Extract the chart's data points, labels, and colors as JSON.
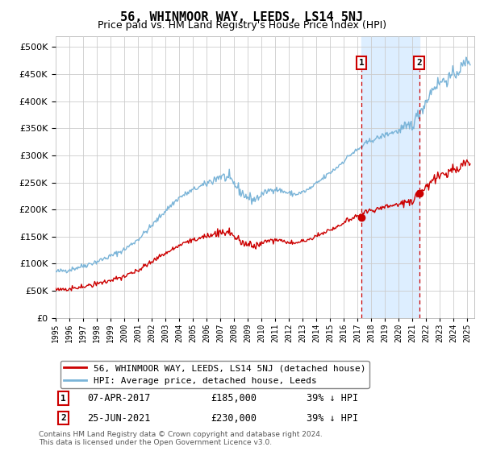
{
  "title": "56, WHINMOOR WAY, LEEDS, LS14 5NJ",
  "subtitle": "Price paid vs. HM Land Registry's House Price Index (HPI)",
  "hpi_label": "HPI: Average price, detached house, Leeds",
  "property_label": "56, WHINMOOR WAY, LEEDS, LS14 5NJ (detached house)",
  "footer": "Contains HM Land Registry data © Crown copyright and database right 2024.\nThis data is licensed under the Open Government Licence v3.0.",
  "annotation1": {
    "label": "1",
    "date": "07-APR-2017",
    "price": "£185,000",
    "hpi": "39% ↓ HPI",
    "x_year": 2017.27
  },
  "annotation2": {
    "label": "2",
    "date": "25-JUN-2021",
    "price": "£230,000",
    "hpi": "39% ↓ HPI",
    "x_year": 2021.48
  },
  "sale1_price": 185000,
  "sale2_price": 230000,
  "ylim": [
    0,
    520000
  ],
  "xlim_start": 1995.0,
  "xlim_end": 2025.5,
  "hpi_color": "#7ab4d8",
  "property_color": "#cc0000",
  "shading_color": "#ddeeff",
  "grid_color": "#cccccc",
  "background_color": "#ffffff"
}
